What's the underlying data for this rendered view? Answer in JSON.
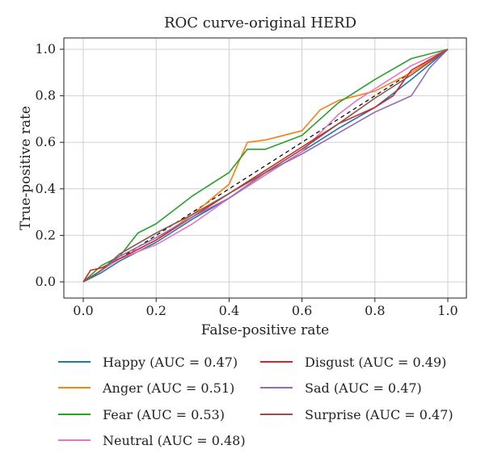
{
  "chart_data": {
    "type": "line",
    "title": "ROC curve-original HERD",
    "xlabel": "False-positive rate",
    "ylabel": "True-positive rate",
    "xlim": [
      0,
      1
    ],
    "ylim": [
      0,
      1
    ],
    "xticks": [
      "0.0",
      "0.2",
      "0.4",
      "0.6",
      "0.8",
      "1.0"
    ],
    "yticks": [
      "0.0",
      "0.2",
      "0.4",
      "0.6",
      "0.8",
      "1.0"
    ],
    "grid": true,
    "legend_position": "bottom",
    "reference_line": {
      "style": "dashed",
      "color": "#000000",
      "x": [
        0,
        1
      ],
      "y": [
        0,
        1
      ]
    },
    "series": [
      {
        "name": "Happy (AUC = 0.47)",
        "color": "#1f77b4",
        "x": [
          0,
          0.05,
          0.1,
          0.2,
          0.3,
          0.4,
          0.5,
          0.6,
          0.7,
          0.8,
          0.9,
          1.0
        ],
        "y": [
          0,
          0.04,
          0.09,
          0.17,
          0.27,
          0.36,
          0.46,
          0.56,
          0.66,
          0.75,
          0.87,
          1.0
        ]
      },
      {
        "name": "Anger (AUC = 0.51)",
        "color": "#ff7f0e",
        "x": [
          0,
          0.05,
          0.1,
          0.2,
          0.3,
          0.4,
          0.45,
          0.5,
          0.6,
          0.65,
          0.7,
          0.8,
          0.9,
          1.0
        ],
        "y": [
          0,
          0.05,
          0.1,
          0.18,
          0.29,
          0.42,
          0.6,
          0.61,
          0.65,
          0.74,
          0.78,
          0.82,
          0.9,
          1.0
        ]
      },
      {
        "name": "Fear (AUC = 0.53)",
        "color": "#2ca02c",
        "x": [
          0,
          0.05,
          0.1,
          0.15,
          0.2,
          0.3,
          0.4,
          0.45,
          0.5,
          0.6,
          0.7,
          0.8,
          0.9,
          1.0
        ],
        "y": [
          0,
          0.07,
          0.11,
          0.21,
          0.25,
          0.37,
          0.47,
          0.57,
          0.57,
          0.63,
          0.77,
          0.87,
          0.96,
          1.0
        ]
      },
      {
        "name": "Neutral (AUC = 0.48)",
        "color": "#e377c2",
        "x": [
          0,
          0.05,
          0.1,
          0.2,
          0.3,
          0.4,
          0.5,
          0.6,
          0.7,
          0.75,
          0.8,
          0.9,
          1.0
        ],
        "y": [
          0,
          0.05,
          0.1,
          0.16,
          0.25,
          0.36,
          0.46,
          0.56,
          0.72,
          0.78,
          0.83,
          0.93,
          1.0
        ]
      },
      {
        "name": "Disgust (AUC = 0.49)",
        "color": "#d62728",
        "x": [
          0,
          0.02,
          0.05,
          0.1,
          0.2,
          0.3,
          0.4,
          0.5,
          0.6,
          0.7,
          0.8,
          0.85,
          0.9,
          1.0
        ],
        "y": [
          0,
          0.05,
          0.06,
          0.1,
          0.18,
          0.28,
          0.38,
          0.48,
          0.58,
          0.68,
          0.75,
          0.8,
          0.91,
          1.0
        ]
      },
      {
        "name": "Sad (AUC = 0.47)",
        "color": "#9467bd",
        "x": [
          0,
          0.05,
          0.1,
          0.2,
          0.3,
          0.4,
          0.5,
          0.6,
          0.7,
          0.8,
          0.9,
          0.95,
          1.0
        ],
        "y": [
          0,
          0.05,
          0.11,
          0.19,
          0.28,
          0.36,
          0.47,
          0.55,
          0.64,
          0.73,
          0.8,
          0.92,
          1.0
        ]
      },
      {
        "name": "Surprise (AUC = 0.47)",
        "color": "#8c564b",
        "x": [
          0,
          0.05,
          0.1,
          0.2,
          0.3,
          0.4,
          0.5,
          0.6,
          0.7,
          0.8,
          0.9,
          1.0
        ],
        "y": [
          0,
          0.05,
          0.12,
          0.21,
          0.29,
          0.38,
          0.47,
          0.57,
          0.68,
          0.79,
          0.89,
          1.0
        ]
      }
    ]
  }
}
